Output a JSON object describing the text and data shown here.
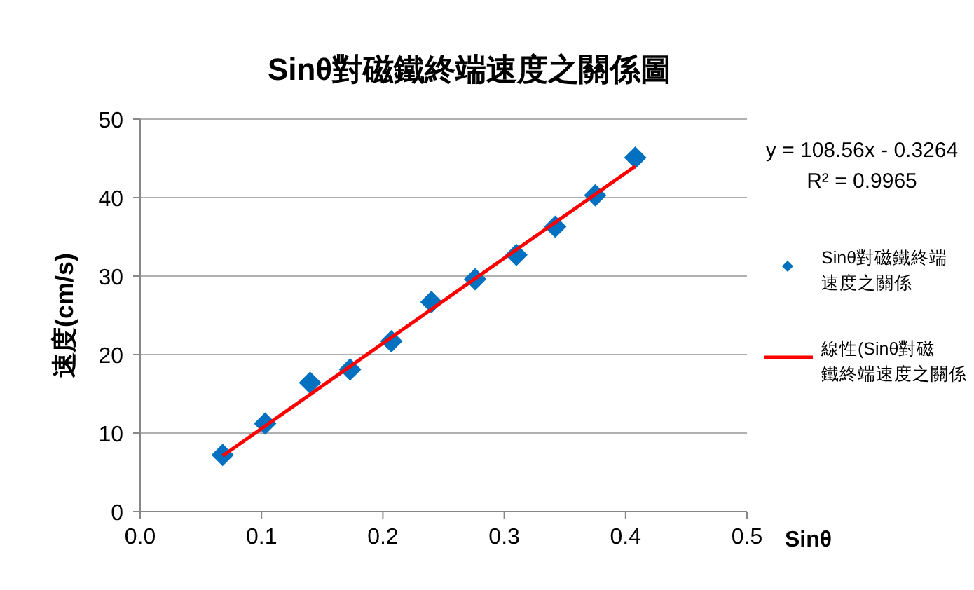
{
  "chart_data": {
    "type": "scatter",
    "title": "Sinθ對磁鐵終端速度之關係圖",
    "xlabel": "Sinθ",
    "ylabel": "速度(cm/s)",
    "xlim": [
      0,
      0.5
    ],
    "ylim": [
      0,
      50
    ],
    "xticks": [
      {
        "value": 0,
        "label": "0.0"
      },
      {
        "value": 0.1,
        "label": "0.1"
      },
      {
        "value": 0.2,
        "label": "0.2"
      },
      {
        "value": 0.3,
        "label": "0.3"
      },
      {
        "value": 0.4,
        "label": "0.4"
      },
      {
        "value": 0.5,
        "label": "0.5"
      }
    ],
    "yticks": [
      0,
      10,
      20,
      30,
      40,
      50
    ],
    "grid": "y",
    "legend": "right",
    "annotations": [
      "y = 108.56x - 0.3264",
      "R² = 0.9965"
    ],
    "series": [
      {
        "name": "Sinθ對磁鐵終端速度之關係",
        "marker": "diamond",
        "color": "#0070c0",
        "x": [
          0.068,
          0.103,
          0.14,
          0.173,
          0.207,
          0.24,
          0.276,
          0.31,
          0.342,
          0.375,
          0.408
        ],
        "values": [
          7.2,
          11.2,
          16.4,
          18.1,
          21.7,
          26.7,
          29.6,
          32.7,
          36.3,
          40.3,
          45.1
        ]
      },
      {
        "name": "線性(Sinθ對磁鐵終端速度之關係",
        "type": "line",
        "marker": "none",
        "color": "#ff0000",
        "x": [
          0.068,
          0.408
        ],
        "values": [
          7.1,
          44
        ]
      }
    ]
  }
}
